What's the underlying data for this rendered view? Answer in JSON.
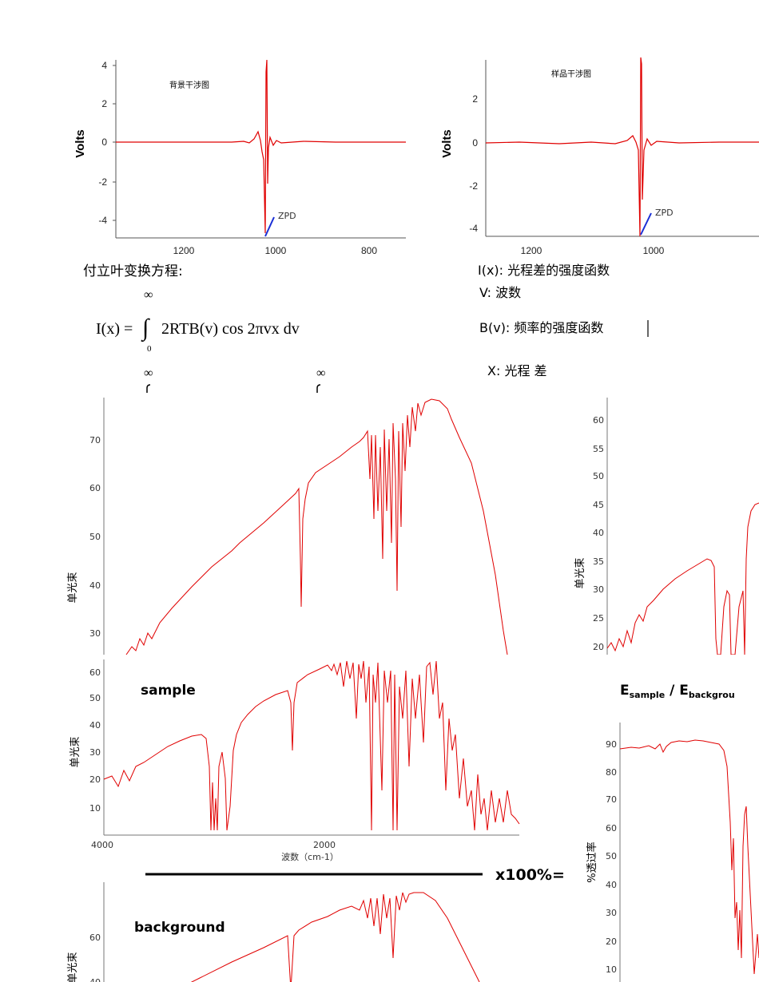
{
  "interferograms": [
    {
      "label": "背景干涉图",
      "ylabel": "Volts",
      "yticks": [
        "4",
        "2",
        "0",
        "-2",
        "-4"
      ],
      "xticks": [
        "1200",
        "1000",
        "800"
      ],
      "zpd": "ZPD"
    },
    {
      "label": "样品干涉图",
      "ylabel": "Volts",
      "yticks": [
        "2",
        "0",
        "-2",
        "-4"
      ],
      "xticks": [
        "1200",
        "1000"
      ],
      "zpd": "ZPD"
    }
  ],
  "equation": {
    "heading": "付立叶变换方程:",
    "inf": "∞",
    "lhs": "I(x) =",
    "integral": "∫",
    "rhs": "2RTB(v) cos 2πvx dv",
    "lower": "0"
  },
  "legend": {
    "ix": "I(x): 光程差的强度函数",
    "v": "V: 波数",
    "bv": "B(v): 频率的强度函数",
    "x": "X: 光程 差"
  },
  "inf_marks": [
    "∞",
    "∞"
  ],
  "spectra": {
    "top_large": {
      "ylabel": "单光束",
      "yticks": [
        "70",
        "60",
        "50",
        "40",
        "30"
      ]
    },
    "right_top": {
      "ylabel": "单光束",
      "yticks": [
        "60",
        "55",
        "50",
        "45",
        "40",
        "35",
        "30",
        "25",
        "20"
      ]
    },
    "sample": {
      "title": "sample",
      "ylabel": "单光束",
      "yticks": [
        "60",
        "50",
        "40",
        "30",
        "20",
        "10"
      ],
      "xticks": [
        "4000",
        "2000"
      ],
      "xlabel": "波数（cm-1）"
    },
    "background": {
      "title": "background",
      "ylabel": "单光束",
      "yticks": [
        "60",
        "40"
      ]
    },
    "transmittance": {
      "ylabel": "%透过率",
      "yticks": [
        "90",
        "80",
        "70",
        "60",
        "50",
        "40",
        "30",
        "20",
        "10"
      ]
    }
  },
  "ratio": {
    "label": "x100%=",
    "esample": "E",
    "sub1": "sample",
    "slash": " / ",
    "ebg": "E",
    "sub2": "backgrou"
  },
  "colors": {
    "trace": "#e00000",
    "zpd_line": "#1a2fd6",
    "axis": "#555555"
  }
}
